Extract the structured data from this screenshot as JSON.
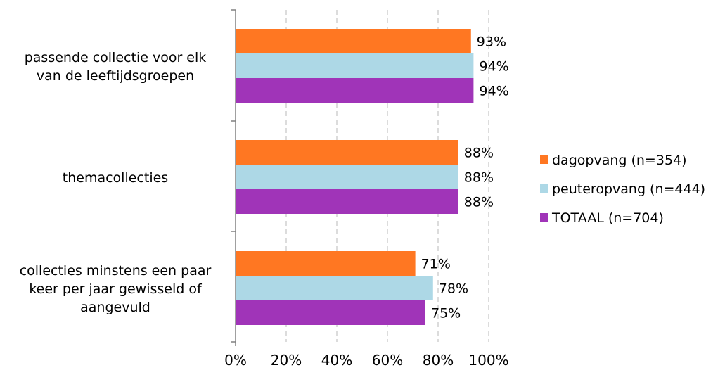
{
  "chart_data": {
    "type": "bar",
    "orientation": "horizontal",
    "categories": [
      "passende collectie voor elk van de leeftijdsgroepen",
      "themacollecties",
      "collecties minstens een paar keer per jaar gewisseld of aangevuld"
    ],
    "category_lines": [
      [
        "passende collectie voor elk",
        "van de leeftijdsgroepen"
      ],
      [
        "themacollecties"
      ],
      [
        "collecties minstens een paar",
        "keer per jaar gewisseld of",
        "aangevuld"
      ]
    ],
    "series": [
      {
        "name": "dagopvang (n=354)",
        "color": "#FF7722",
        "values": [
          93,
          88,
          71
        ],
        "labels": [
          "93%",
          "88%",
          "71%"
        ]
      },
      {
        "name": "peuteropvang (n=444)",
        "color": "#ADD8E6",
        "values": [
          94,
          88,
          78
        ],
        "labels": [
          "94%",
          "88%",
          "78%"
        ]
      },
      {
        "name": "TOTAAL (n=704)",
        "color": "#A034B8",
        "values": [
          94,
          88,
          75
        ],
        "labels": [
          "94%",
          "88%",
          "75%"
        ]
      }
    ],
    "xlim": [
      0,
      100
    ],
    "xticks": [
      0,
      20,
      40,
      60,
      80,
      100
    ],
    "xtick_labels": [
      "0%",
      "20%",
      "40%",
      "60%",
      "80%",
      "100%"
    ],
    "grid": true,
    "legend_position": "right",
    "title": "",
    "xlabel": "",
    "ylabel": ""
  }
}
